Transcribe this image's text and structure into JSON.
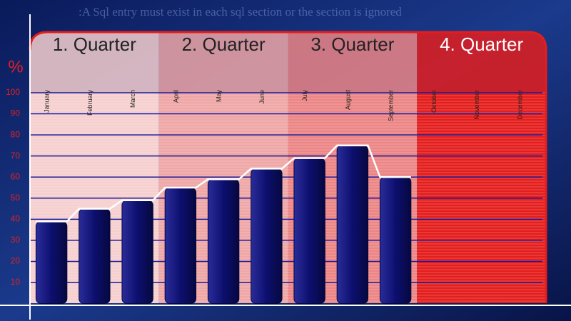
{
  "background_text": ":A Sql entry must exist in each sql section or the section is ignored",
  "chart_data": {
    "type": "bar",
    "y_label": "%",
    "quarters": [
      "1. Quarter",
      "2. Quarter",
      "3. Quarter",
      "4. Quarter"
    ],
    "quarter_colors": [
      "#f6cfcf",
      "#efa6a6",
      "#ec8585",
      "#e41d1d"
    ],
    "categories": [
      "January",
      "February",
      "March",
      "April",
      "May",
      "June",
      "July",
      "August",
      "September",
      "October",
      "November",
      "December"
    ],
    "values": [
      39,
      45,
      49,
      55,
      59,
      64,
      69,
      75,
      60,
      null,
      null,
      null
    ],
    "color": "#0d0f6e",
    "ylim": [
      0,
      100
    ],
    "yticks": [
      10,
      20,
      30,
      40,
      50,
      60,
      70,
      80,
      90,
      100
    ],
    "grid": true
  }
}
